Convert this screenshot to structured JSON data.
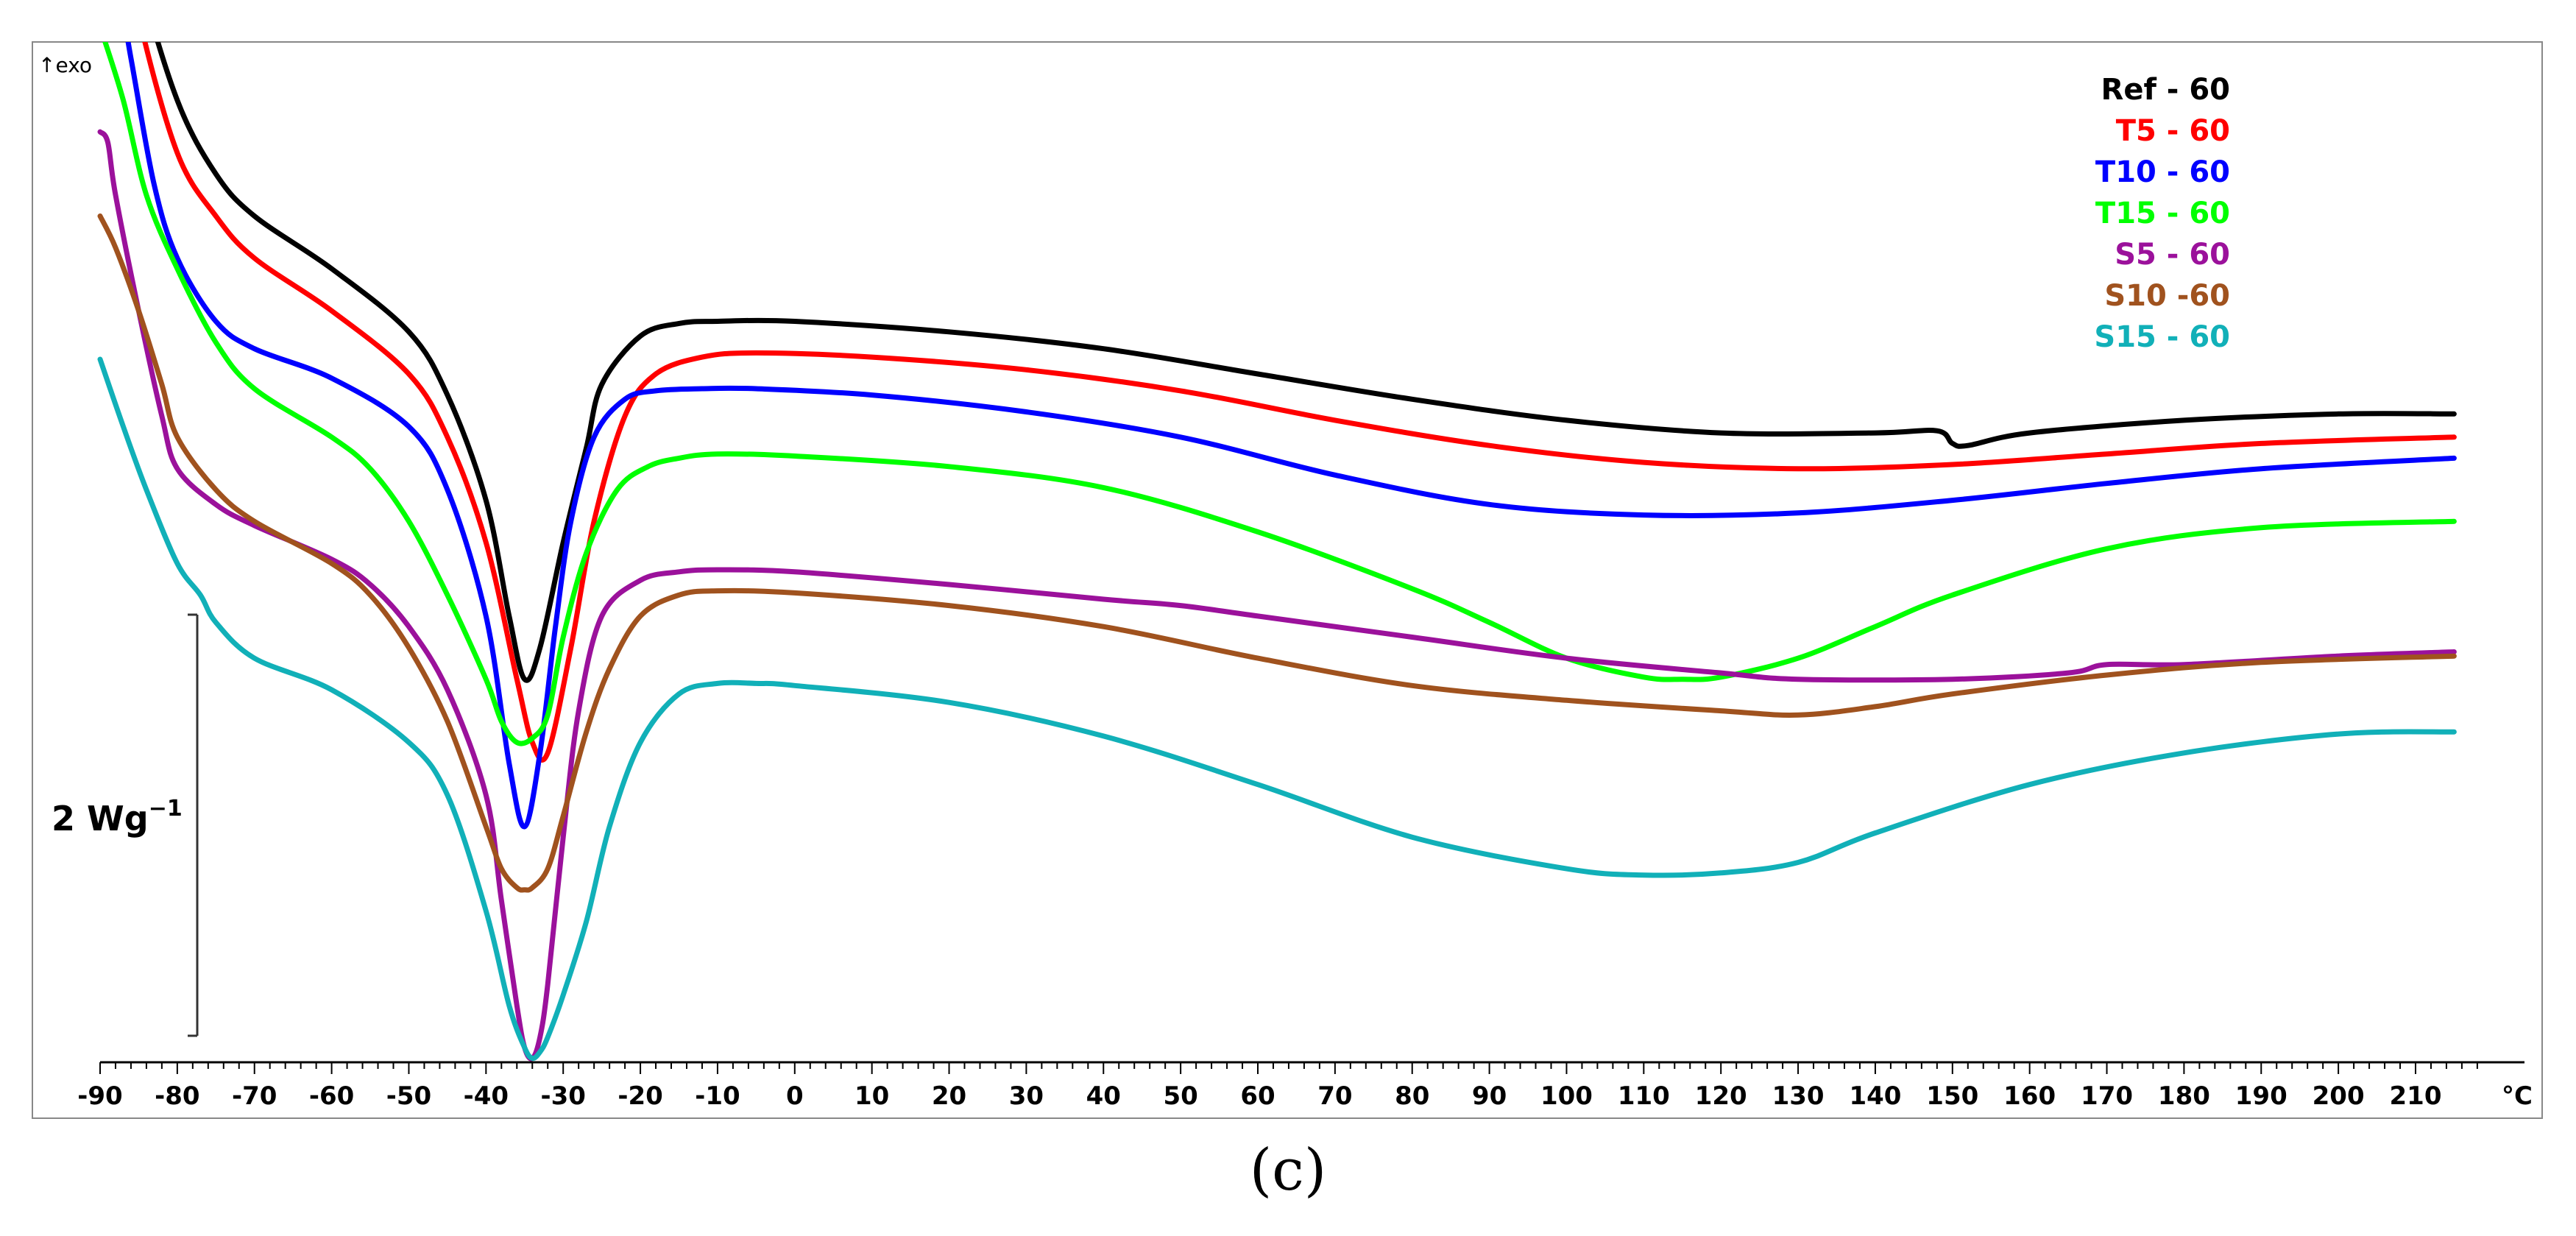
{
  "chart_data": {
    "type": "line",
    "title": "",
    "xlabel": "°C",
    "ylabel": "↑exo",
    "xlim": [
      -90,
      220
    ],
    "x_ticks": [
      -90,
      -80,
      -70,
      -60,
      -50,
      -40,
      -30,
      -20,
      -10,
      0,
      10,
      20,
      30,
      40,
      50,
      60,
      70,
      80,
      90,
      100,
      110,
      120,
      130,
      140,
      150,
      160,
      170,
      180,
      190,
      200,
      210
    ],
    "x_unit_label": "°C",
    "y_axis_indicator": "↑exo",
    "scale_bar_label": "2 Wg",
    "scale_bar_exponent": "−1",
    "scale_bar_value_w_per_g": 2,
    "legend_position": "top-right",
    "caption": "(c)",
    "series": [
      {
        "name": "Ref - 60",
        "color": "#000000",
        "x": [
          -88,
          -85,
          -80,
          -75,
          -70,
          -60,
          -50,
          -45,
          -40,
          -37,
          -35,
          -33,
          -30,
          -27,
          -25,
          -20,
          -15,
          -10,
          0,
          20,
          40,
          60,
          80,
          100,
          120,
          140,
          148,
          150,
          152,
          160,
          180,
          200,
          215
        ],
        "y": [
          4.4,
          3.9,
          3.3,
          2.95,
          2.75,
          2.5,
          2.2,
          1.9,
          1.4,
          0.85,
          0.55,
          0.7,
          1.2,
          1.65,
          1.95,
          2.18,
          2.24,
          2.25,
          2.25,
          2.2,
          2.12,
          2.0,
          1.88,
          1.78,
          1.72,
          1.72,
          1.73,
          1.67,
          1.66,
          1.72,
          1.78,
          1.81,
          1.81
        ]
      },
      {
        "name": "T5 - 60",
        "color": "#ff0000",
        "x": [
          -88,
          -85,
          -80,
          -75,
          -70,
          -60,
          -50,
          -45,
          -40,
          -36,
          -34,
          -32,
          -29,
          -26,
          -22,
          -18,
          -12,
          -5,
          10,
          30,
          50,
          70,
          90,
          110,
          130,
          150,
          170,
          190,
          215
        ],
        "y": [
          4.3,
          3.7,
          3.05,
          2.75,
          2.55,
          2.3,
          2.0,
          1.7,
          1.2,
          0.55,
          0.25,
          0.2,
          0.7,
          1.3,
          1.8,
          2.0,
          2.08,
          2.1,
          2.08,
          2.02,
          1.92,
          1.78,
          1.66,
          1.58,
          1.55,
          1.57,
          1.62,
          1.67,
          1.7
        ]
      },
      {
        "name": "T10 - 60",
        "color": "#0000ff",
        "x": [
          -90,
          -88,
          -86,
          -83,
          -80,
          -75,
          -70,
          -60,
          -50,
          -45,
          -40,
          -37,
          -35,
          -33,
          -31,
          -29,
          -26,
          -22,
          -18,
          -12,
          -5,
          10,
          30,
          50,
          70,
          90,
          110,
          130,
          150,
          170,
          190,
          215
        ],
        "y": [
          3.95,
          3.9,
          3.5,
          2.9,
          2.55,
          2.25,
          2.12,
          1.98,
          1.75,
          1.45,
          0.85,
          0.15,
          -0.15,
          0.2,
          0.8,
          1.3,
          1.7,
          1.88,
          1.92,
          1.93,
          1.93,
          1.9,
          1.82,
          1.7,
          1.52,
          1.38,
          1.33,
          1.34,
          1.4,
          1.48,
          1.55,
          1.6
        ]
      },
      {
        "name": "T15 - 60",
        "color": "#00ff00",
        "x": [
          -90,
          -87,
          -84,
          -80,
          -75,
          -70,
          -60,
          -55,
          -50,
          -45,
          -40,
          -38,
          -36,
          -34,
          -32,
          -30,
          -27,
          -23,
          -19,
          -15,
          -10,
          0,
          20,
          40,
          60,
          80,
          90,
          100,
          110,
          115,
          120,
          130,
          140,
          150,
          170,
          190,
          215
        ],
        "y": [
          3.65,
          3.3,
          2.85,
          2.5,
          2.15,
          1.93,
          1.7,
          1.55,
          1.3,
          0.95,
          0.55,
          0.35,
          0.25,
          0.27,
          0.38,
          0.75,
          1.15,
          1.45,
          1.56,
          1.6,
          1.62,
          1.61,
          1.56,
          1.46,
          1.25,
          0.98,
          0.82,
          0.65,
          0.56,
          0.55,
          0.56,
          0.65,
          0.8,
          0.95,
          1.17,
          1.27,
          1.3
        ]
      },
      {
        "name": "S5 - 60",
        "color": "#9b119b",
        "x": [
          -90,
          -89,
          -88,
          -85,
          -82,
          -80,
          -75,
          -70,
          -60,
          -55,
          -50,
          -45,
          -40,
          -38,
          -36,
          -35,
          -34,
          -33,
          -32,
          -30,
          -28,
          -25,
          -20,
          -15,
          -10,
          0,
          20,
          40,
          50,
          60,
          80,
          100,
          120,
          130,
          150,
          165,
          170,
          180,
          200,
          215
        ],
        "y": [
          3.15,
          3.1,
          2.85,
          2.3,
          1.8,
          1.55,
          1.38,
          1.28,
          1.12,
          1.0,
          0.8,
          0.5,
          0.0,
          -0.5,
          -1.0,
          -1.2,
          -1.25,
          -1.15,
          -0.9,
          -0.2,
          0.4,
          0.85,
          1.02,
          1.06,
          1.07,
          1.06,
          1.0,
          0.93,
          0.9,
          0.85,
          0.75,
          0.65,
          0.58,
          0.55,
          0.55,
          0.58,
          0.62,
          0.62,
          0.66,
          0.68
        ]
      },
      {
        "name": "S10 -60",
        "color": "#a0521e",
        "x": [
          -90,
          -88,
          -85,
          -82,
          -80,
          -75,
          -70,
          -60,
          -55,
          -50,
          -45,
          -40,
          -38,
          -36,
          -35,
          -34,
          -32,
          -30,
          -27,
          -24,
          -20,
          -15,
          -10,
          0,
          20,
          40,
          60,
          80,
          100,
          120,
          130,
          140,
          150,
          170,
          190,
          215
        ],
        "y": [
          2.75,
          2.6,
          2.3,
          1.95,
          1.7,
          1.45,
          1.3,
          1.1,
          0.95,
          0.7,
          0.35,
          -0.15,
          -0.35,
          -0.44,
          -0.45,
          -0.44,
          -0.35,
          -0.1,
          0.3,
          0.6,
          0.85,
          0.95,
          0.97,
          0.96,
          0.9,
          0.8,
          0.65,
          0.52,
          0.45,
          0.4,
          0.38,
          0.42,
          0.48,
          0.57,
          0.63,
          0.66
        ]
      },
      {
        "name": "S15 - 60",
        "color": "#11b0b8",
        "x": [
          -90,
          -87,
          -84,
          -80,
          -77,
          -75,
          -70,
          -60,
          -50,
          -45,
          -40,
          -37,
          -35,
          -34,
          -33,
          -32,
          -30,
          -27,
          -24,
          -20,
          -15,
          -10,
          -5,
          0,
          20,
          40,
          60,
          80,
          100,
          110,
          120,
          130,
          140,
          160,
          180,
          200,
          215
        ],
        "y": [
          2.07,
          1.75,
          1.45,
          1.1,
          0.95,
          0.82,
          0.65,
          0.5,
          0.25,
          0.0,
          -0.55,
          -1.0,
          -1.2,
          -1.25,
          -1.22,
          -1.15,
          -0.95,
          -0.6,
          -0.15,
          0.25,
          0.48,
          0.53,
          0.53,
          0.52,
          0.44,
          0.28,
          0.05,
          -0.2,
          -0.35,
          -0.38,
          -0.37,
          -0.32,
          -0.18,
          0.05,
          0.2,
          0.29,
          0.3
        ]
      }
    ]
  }
}
